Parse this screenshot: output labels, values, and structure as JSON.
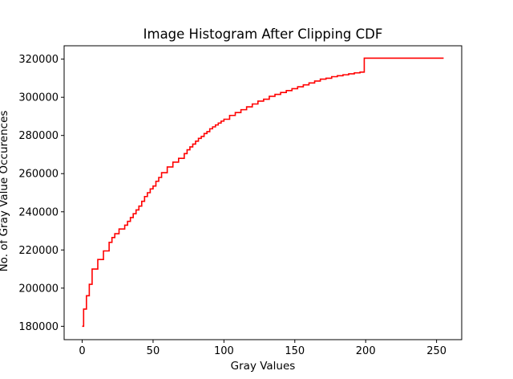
{
  "chart_data": {
    "type": "line",
    "title": "Image Histogram After Clipping CDF",
    "xlabel": "Gray Values",
    "ylabel": "No. of Gray Value Occurences",
    "xlim": [
      -12.75,
      267.75
    ],
    "ylim": [
      173000,
      327000
    ],
    "xticks": [
      0,
      50,
      100,
      150,
      200,
      250
    ],
    "yticks": [
      180000,
      200000,
      220000,
      240000,
      260000,
      280000,
      300000,
      320000
    ],
    "xtick_labels": [
      "0",
      "50",
      "100",
      "150",
      "200",
      "250"
    ],
    "ytick_labels": [
      "180000",
      "200000",
      "220000",
      "240000",
      "260000",
      "280000",
      "300000",
      "320000"
    ],
    "grid": false,
    "line_color": "#ff0000",
    "series": [
      {
        "step": "post",
        "x": [
          0,
          1,
          3,
          5,
          7,
          11,
          15,
          19,
          21,
          23,
          26,
          30,
          32,
          34,
          36,
          38,
          40,
          42,
          44,
          46,
          48,
          50,
          52,
          54,
          56,
          60,
          64,
          68,
          72,
          74,
          76,
          78,
          80,
          82,
          84,
          86,
          88,
          90,
          92,
          94,
          96,
          98,
          100,
          104,
          108,
          112,
          116,
          120,
          124,
          128,
          132,
          136,
          140,
          144,
          148,
          152,
          156,
          160,
          164,
          168,
          172,
          176,
          180,
          184,
          188,
          192,
          196,
          199,
          255
        ],
        "y": [
          180000,
          189000,
          196000,
          202000,
          210000,
          215000,
          219500,
          224000,
          226500,
          228500,
          231000,
          233000,
          235000,
          237000,
          239000,
          241000,
          243000,
          245500,
          248000,
          250000,
          252000,
          253500,
          256000,
          258000,
          260500,
          263500,
          266000,
          268000,
          270500,
          272500,
          274000,
          275500,
          277000,
          278500,
          279500,
          281000,
          282000,
          283500,
          284500,
          285500,
          286500,
          287500,
          288500,
          290500,
          292000,
          293500,
          295000,
          296500,
          298000,
          299000,
          300500,
          301500,
          302500,
          303500,
          304500,
          305500,
          306500,
          307500,
          308500,
          309500,
          310000,
          310800,
          311300,
          311800,
          312300,
          312800,
          313200,
          320500,
          320500
        ]
      }
    ]
  }
}
